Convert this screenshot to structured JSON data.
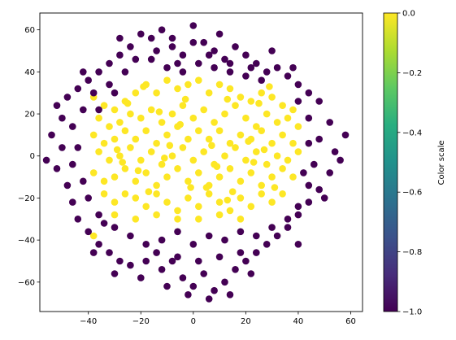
{
  "chart_data": {
    "type": "scatter",
    "title": "",
    "xlabel": "",
    "ylabel": "",
    "xlim": [
      -58.5,
      64.5
    ],
    "ylim": [
      -74,
      68
    ],
    "x_ticks": [
      -40,
      -20,
      0,
      20,
      40,
      60
    ],
    "y_ticks": [
      -60,
      -40,
      -20,
      0,
      20,
      40,
      60
    ],
    "grid": false,
    "colormap": "viridis",
    "colorbar": {
      "label": "Color scale",
      "range": [
        -1.0,
        0.0
      ],
      "ticks": [
        0.0,
        -0.2,
        -0.4,
        -0.6,
        -0.8,
        -1.0
      ],
      "tick_labels": [
        "0.0",
        "−0.2",
        "−0.4",
        "−0.6",
        "−0.8",
        "−1.0"
      ]
    },
    "colors": {
      "value_0": "#fde725",
      "value_neg1": "#440154"
    },
    "series": [
      {
        "value": 0,
        "points": [
          [
            -38,
            28
          ],
          [
            -34,
            24
          ],
          [
            -30,
            22
          ],
          [
            -26,
            26
          ],
          [
            -22,
            30
          ],
          [
            -18,
            34
          ],
          [
            -14,
            30
          ],
          [
            -10,
            36
          ],
          [
            -6,
            32
          ],
          [
            -2,
            34
          ],
          [
            2,
            36
          ],
          [
            6,
            30
          ],
          [
            10,
            34
          ],
          [
            14,
            32
          ],
          [
            18,
            28
          ],
          [
            22,
            26
          ],
          [
            26,
            30
          ],
          [
            30,
            28
          ],
          [
            34,
            24
          ],
          [
            38,
            22
          ],
          [
            -36,
            18
          ],
          [
            -32,
            14
          ],
          [
            -28,
            16
          ],
          [
            -24,
            20
          ],
          [
            -20,
            18
          ],
          [
            -16,
            22
          ],
          [
            -12,
            16
          ],
          [
            -8,
            20
          ],
          [
            -4,
            24
          ],
          [
            0,
            18
          ],
          [
            4,
            22
          ],
          [
            8,
            16
          ],
          [
            12,
            20
          ],
          [
            16,
            24
          ],
          [
            20,
            18
          ],
          [
            24,
            14
          ],
          [
            28,
            20
          ],
          [
            32,
            16
          ],
          [
            36,
            18
          ],
          [
            40,
            14
          ],
          [
            -38,
            10
          ],
          [
            -34,
            6
          ],
          [
            -30,
            8
          ],
          [
            -26,
            12
          ],
          [
            -22,
            8
          ],
          [
            -18,
            12
          ],
          [
            -14,
            6
          ],
          [
            -10,
            10
          ],
          [
            -6,
            14
          ],
          [
            -2,
            8
          ],
          [
            2,
            12
          ],
          [
            6,
            8
          ],
          [
            10,
            12
          ],
          [
            14,
            6
          ],
          [
            18,
            10
          ],
          [
            22,
            8
          ],
          [
            26,
            12
          ],
          [
            30,
            6
          ],
          [
            34,
            10
          ],
          [
            38,
            6
          ],
          [
            -36,
            2
          ],
          [
            -32,
            -2
          ],
          [
            -28,
            0
          ],
          [
            -24,
            4
          ],
          [
            -20,
            -2
          ],
          [
            -16,
            2
          ],
          [
            -12,
            -4
          ],
          [
            -8,
            0
          ],
          [
            -4,
            4
          ],
          [
            0,
            -2
          ],
          [
            4,
            2
          ],
          [
            8,
            -4
          ],
          [
            12,
            0
          ],
          [
            16,
            4
          ],
          [
            20,
            -2
          ],
          [
            24,
            2
          ],
          [
            28,
            -4
          ],
          [
            32,
            0
          ],
          [
            36,
            -2
          ],
          [
            40,
            2
          ],
          [
            -38,
            -8
          ],
          [
            -34,
            -12
          ],
          [
            -30,
            -10
          ],
          [
            -26,
            -6
          ],
          [
            -22,
            -12
          ],
          [
            -18,
            -8
          ],
          [
            -14,
            -14
          ],
          [
            -10,
            -10
          ],
          [
            -6,
            -6
          ],
          [
            -2,
            -12
          ],
          [
            2,
            -8
          ],
          [
            6,
            -14
          ],
          [
            10,
            -10
          ],
          [
            14,
            -6
          ],
          [
            18,
            -12
          ],
          [
            22,
            -8
          ],
          [
            26,
            -14
          ],
          [
            30,
            -10
          ],
          [
            34,
            -6
          ],
          [
            38,
            -10
          ],
          [
            -34,
            -18
          ],
          [
            -30,
            -22
          ],
          [
            -26,
            -18
          ],
          [
            -22,
            -20
          ],
          [
            -18,
            -24
          ],
          [
            -14,
            -18
          ],
          [
            -10,
            -22
          ],
          [
            -6,
            -26
          ],
          [
            -2,
            -20
          ],
          [
            2,
            -24
          ],
          [
            6,
            -18
          ],
          [
            10,
            -22
          ],
          [
            14,
            -26
          ],
          [
            18,
            -20
          ],
          [
            22,
            -24
          ],
          [
            26,
            -18
          ],
          [
            30,
            -22
          ],
          [
            34,
            -18
          ],
          [
            -30,
            -28
          ],
          [
            -22,
            -30
          ],
          [
            -14,
            -28
          ],
          [
            -6,
            -30
          ],
          [
            2,
            -30
          ],
          [
            10,
            -28
          ],
          [
            18,
            -30
          ],
          [
            -38,
            -38
          ],
          [
            -19,
            33
          ],
          [
            -3,
            27
          ],
          [
            13,
            27
          ],
          [
            29,
            33
          ],
          [
            -29,
            3
          ],
          [
            -11,
            -1
          ],
          [
            7,
            5
          ],
          [
            23,
            -3
          ],
          [
            -17,
            -17
          ],
          [
            -1,
            -15
          ],
          [
            15,
            -17
          ],
          [
            31,
            -15
          ],
          [
            -25,
            25
          ],
          [
            25,
            25
          ],
          [
            -9,
            5
          ],
          [
            9,
            -5
          ],
          [
            -5,
            15
          ],
          [
            5,
            -15
          ],
          [
            -21,
            -7
          ],
          [
            21,
            7
          ],
          [
            -13,
            21
          ],
          [
            13,
            -21
          ],
          [
            -27,
            -3
          ],
          [
            27,
            3
          ]
        ]
      },
      {
        "value": -1,
        "points": [
          [
            -20,
            58
          ],
          [
            -16,
            56
          ],
          [
            -12,
            60
          ],
          [
            -8,
            52
          ],
          [
            -4,
            48
          ],
          [
            0,
            62
          ],
          [
            4,
            54
          ],
          [
            8,
            50
          ],
          [
            12,
            46
          ],
          [
            16,
            52
          ],
          [
            20,
            48
          ],
          [
            24,
            44
          ],
          [
            28,
            40
          ],
          [
            32,
            42
          ],
          [
            36,
            38
          ],
          [
            40,
            34
          ],
          [
            44,
            30
          ],
          [
            48,
            26
          ],
          [
            -24,
            52
          ],
          [
            -28,
            48
          ],
          [
            -32,
            44
          ],
          [
            -36,
            40
          ],
          [
            -40,
            36
          ],
          [
            -44,
            32
          ],
          [
            -48,
            28
          ],
          [
            -52,
            24
          ],
          [
            -54,
            10
          ],
          [
            -50,
            4
          ],
          [
            -52,
            -6
          ],
          [
            -48,
            -14
          ],
          [
            -46,
            -22
          ],
          [
            -44,
            -30
          ],
          [
            -40,
            -36
          ],
          [
            -36,
            -42
          ],
          [
            -32,
            -46
          ],
          [
            -28,
            -50
          ],
          [
            -24,
            -52
          ],
          [
            -20,
            -58
          ],
          [
            -12,
            -54
          ],
          [
            -8,
            -50
          ],
          [
            -4,
            -58
          ],
          [
            0,
            -62
          ],
          [
            4,
            -56
          ],
          [
            8,
            -64
          ],
          [
            12,
            -60
          ],
          [
            16,
            -54
          ],
          [
            20,
            -50
          ],
          [
            24,
            -46
          ],
          [
            28,
            -42
          ],
          [
            32,
            -38
          ],
          [
            36,
            -34
          ],
          [
            40,
            -28
          ],
          [
            44,
            -22
          ],
          [
            48,
            -16
          ],
          [
            52,
            -8
          ],
          [
            54,
            2
          ],
          [
            58,
            10
          ],
          [
            52,
            16
          ],
          [
            48,
            8
          ],
          [
            -16,
            46
          ],
          [
            -10,
            42
          ],
          [
            -4,
            40
          ],
          [
            2,
            44
          ],
          [
            8,
            42
          ],
          [
            14,
            40
          ],
          [
            20,
            38
          ],
          [
            26,
            36
          ],
          [
            -26,
            40
          ],
          [
            -32,
            34
          ],
          [
            -38,
            30
          ],
          [
            -42,
            22
          ],
          [
            -46,
            14
          ],
          [
            -44,
            4
          ],
          [
            -46,
            -4
          ],
          [
            -42,
            -12
          ],
          [
            -40,
            -20
          ],
          [
            -36,
            -28
          ],
          [
            -30,
            -34
          ],
          [
            -24,
            -38
          ],
          [
            -18,
            -42
          ],
          [
            -12,
            -40
          ],
          [
            -6,
            -36
          ],
          [
            0,
            -42
          ],
          [
            6,
            -38
          ],
          [
            12,
            -40
          ],
          [
            18,
            -36
          ],
          [
            24,
            -38
          ],
          [
            30,
            -34
          ],
          [
            36,
            -30
          ],
          [
            40,
            -24
          ],
          [
            44,
            -14
          ],
          [
            46,
            -4
          ],
          [
            44,
            6
          ],
          [
            44,
            18
          ],
          [
            40,
            26
          ],
          [
            -14,
            -46
          ],
          [
            -6,
            -48
          ],
          [
            2,
            -50
          ],
          [
            10,
            -48
          ],
          [
            18,
            -46
          ],
          [
            -22,
            46
          ],
          [
            -14,
            50
          ],
          [
            -6,
            44
          ],
          [
            6,
            48
          ],
          [
            14,
            44
          ],
          [
            22,
            42
          ],
          [
            -30,
            30
          ],
          [
            -36,
            22
          ],
          [
            42,
            -8
          ],
          [
            -34,
            -32
          ],
          [
            -2,
            -66
          ],
          [
            6,
            -68
          ],
          [
            -10,
            -62
          ],
          [
            14,
            -66
          ],
          [
            -18,
            -50
          ],
          [
            22,
            -56
          ],
          [
            -8,
            56
          ],
          [
            10,
            58
          ],
          [
            -42,
            40
          ],
          [
            38,
            42
          ],
          [
            -50,
            18
          ],
          [
            50,
            -20
          ],
          [
            -28,
            56
          ],
          [
            30,
            50
          ],
          [
            -56,
            -2
          ],
          [
            56,
            -2
          ],
          [
            -38,
            -46
          ],
          [
            40,
            -42
          ],
          [
            0,
            54
          ],
          [
            -30,
            -56
          ]
        ]
      }
    ]
  }
}
